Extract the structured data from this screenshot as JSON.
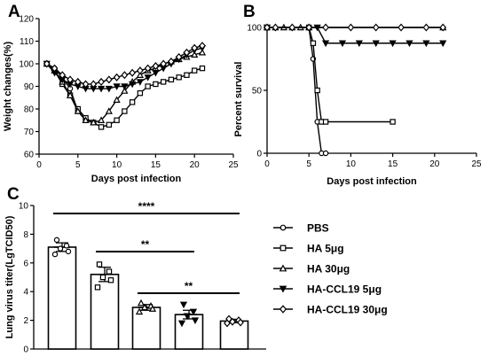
{
  "chart_data": [
    {
      "panel_label": "A",
      "type": "line",
      "xlabel": "Days post infection",
      "ylabel": "Weight changes(%)",
      "xlim": [
        0,
        25
      ],
      "ylim": [
        60,
        120
      ],
      "xticks": [
        0,
        5,
        10,
        15,
        20,
        25
      ],
      "yticks": [
        60,
        70,
        80,
        90,
        100,
        110,
        120
      ],
      "x": [
        1,
        2,
        3,
        4,
        5,
        6,
        7,
        8,
        9,
        10,
        11,
        12,
        13,
        14,
        15,
        16,
        17,
        18,
        19,
        20,
        21
      ],
      "series": [
        {
          "name": "PBS",
          "marker": "circle",
          "values": [
            100,
            98,
            94,
            89,
            79,
            75,
            74,
            null,
            null,
            null,
            null,
            null,
            null,
            null,
            null,
            null,
            null,
            null,
            null,
            null,
            null
          ]
        },
        {
          "name": "HA 5μg",
          "marker": "square",
          "values": [
            100,
            97,
            91,
            86,
            80,
            76,
            74,
            72,
            73,
            75,
            79,
            83,
            87,
            90,
            91,
            92,
            93,
            94,
            95,
            97,
            98
          ]
        },
        {
          "name": "HA 30μg",
          "marker": "triangle-up",
          "values": [
            100,
            97,
            92,
            86,
            79,
            75,
            74,
            75,
            79,
            84,
            88,
            92,
            95,
            97,
            98,
            100,
            101,
            102,
            103,
            104,
            105
          ]
        },
        {
          "name": "HA-CCL19 5μg",
          "marker": "triangle-down",
          "values": [
            100,
            96,
            93,
            91,
            90,
            89,
            89,
            89,
            89,
            90,
            90,
            91,
            92,
            94,
            96,
            98,
            100,
            102,
            104,
            106,
            107
          ]
        },
        {
          "name": "HA-CCL19 30μg",
          "marker": "diamond",
          "values": [
            100,
            98,
            95,
            93,
            92,
            91,
            91,
            92,
            93,
            94,
            95,
            96,
            97,
            98,
            99,
            100,
            101,
            103,
            105,
            107,
            108
          ]
        }
      ]
    },
    {
      "panel_label": "B",
      "type": "line",
      "xlabel": "Days post infection",
      "ylabel": "Percent survival",
      "xlim": [
        0,
        25
      ],
      "ylim": [
        0,
        100
      ],
      "xticks": [
        0,
        5,
        10,
        15,
        20,
        25
      ],
      "yticks": [
        0,
        50,
        100
      ],
      "series": [
        {
          "name": "PBS",
          "marker": "circle",
          "points": [
            [
              0,
              100
            ],
            [
              5,
              100
            ],
            [
              5.5,
              75
            ],
            [
              6,
              25
            ],
            [
              6.5,
              0
            ],
            [
              7,
              0
            ]
          ]
        },
        {
          "name": "HA 5μg",
          "marker": "square",
          "points": [
            [
              0,
              100
            ],
            [
              5,
              100
            ],
            [
              5.5,
              87.5
            ],
            [
              6,
              50
            ],
            [
              6.5,
              25
            ],
            [
              7,
              25
            ],
            [
              15,
              25
            ]
          ]
        },
        {
          "name": "HA 30μg",
          "marker": "triangle-up",
          "points": [
            [
              0,
              100
            ],
            [
              1,
              100
            ],
            [
              2,
              100
            ],
            [
              3,
              100
            ],
            [
              4,
              100
            ],
            [
              5,
              100
            ],
            [
              21,
              100
            ]
          ]
        },
        {
          "name": "HA-CCL19 5μg",
          "marker": "triangle-down",
          "points": [
            [
              0,
              100
            ],
            [
              6,
              100
            ],
            [
              7,
              87.5
            ],
            [
              9,
              87.5
            ],
            [
              11,
              87.5
            ],
            [
              13,
              87.5
            ],
            [
              15,
              87.5
            ],
            [
              17,
              87.5
            ],
            [
              19,
              87.5
            ],
            [
              21,
              87.5
            ]
          ]
        },
        {
          "name": "HA-CCL19 30μg",
          "marker": "diamond",
          "points": [
            [
              0,
              100
            ],
            [
              1,
              100
            ],
            [
              3,
              100
            ],
            [
              5,
              100
            ],
            [
              7,
              100
            ],
            [
              10,
              100
            ],
            [
              13,
              100
            ],
            [
              16,
              100
            ],
            [
              19,
              100
            ],
            [
              21,
              100
            ]
          ]
        }
      ]
    },
    {
      "panel_label": "C",
      "type": "bar",
      "ylabel": "Lung virus titer(LgTCID50)",
      "ylim": [
        0,
        10
      ],
      "yticks": [
        0,
        2,
        4,
        6,
        8,
        10
      ],
      "categories": [
        "PBS",
        "HA 5μg",
        "HA 30μg",
        "HA-CCL19 5μg",
        "HA-CCL19 30μg"
      ],
      "values": [
        7.1,
        5.2,
        2.9,
        2.4,
        1.95
      ],
      "errors": [
        0.3,
        0.5,
        0.2,
        0.3,
        0.12
      ],
      "markers": [
        "circle",
        "square",
        "triangle-up",
        "triangle-down",
        "diamond"
      ],
      "points": [
        [
          7.6,
          7.2,
          7.0,
          6.8,
          6.6
        ],
        [
          5.9,
          5.4,
          5.0,
          4.8,
          4.3
        ],
        [
          3.2,
          3.0,
          2.9,
          2.8,
          2.6
        ],
        [
          3.1,
          2.6,
          2.3,
          2.0,
          1.8
        ],
        [
          2.1,
          2.0,
          1.9,
          1.85,
          1.8
        ]
      ],
      "significance": [
        {
          "from": 0,
          "to": 4,
          "label": "****"
        },
        {
          "from": 1,
          "to": 3,
          "label": "**"
        },
        {
          "from": 2,
          "to": 4,
          "label": "**"
        }
      ]
    }
  ],
  "legend": [
    "PBS",
    "HA 5μg",
    "HA 30μg",
    "HA-CCL19 5μg",
    "HA-CCL19 30μg"
  ]
}
